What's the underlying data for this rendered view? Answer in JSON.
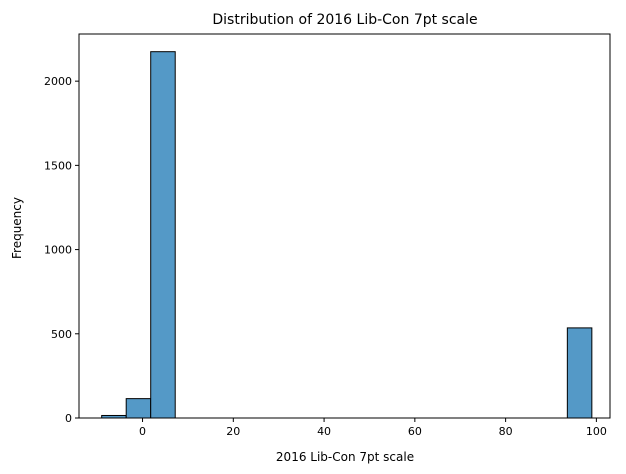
{
  "chart_data": {
    "type": "bar",
    "title": "Distribution of 2016 Lib-Con 7pt scale",
    "xlabel": "2016 Lib-Con 7pt scale",
    "ylabel": "Frequency",
    "xlim": [
      -14,
      103
    ],
    "ylim": [
      0,
      2280
    ],
    "x_ticks": [
      0,
      20,
      40,
      60,
      80,
      100
    ],
    "y_ticks": [
      0,
      500,
      1000,
      1500,
      2000
    ],
    "bar_color": "#5499c7",
    "edge_color": "#000000",
    "grid": false,
    "bins": [
      {
        "start": -9,
        "end": -3.6,
        "count": 15
      },
      {
        "start": -3.6,
        "end": 1.8,
        "count": 115
      },
      {
        "start": 1.8,
        "end": 7.2,
        "count": 2175
      },
      {
        "start": 93.6,
        "end": 99,
        "count": 535
      }
    ]
  }
}
